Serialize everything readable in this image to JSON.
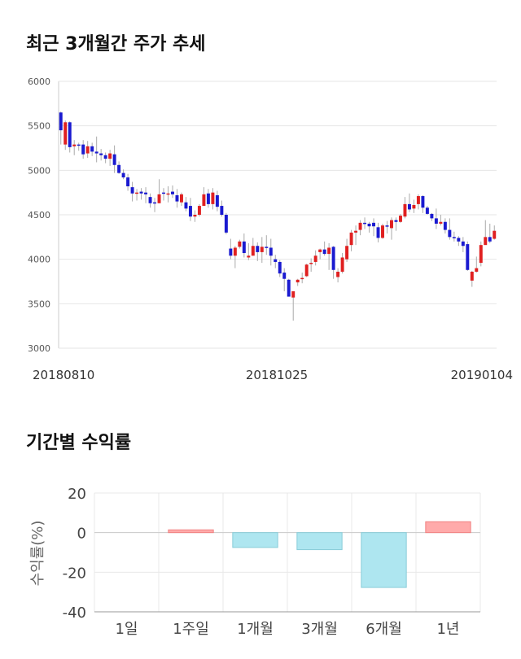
{
  "section1": {
    "title": "최근 3개월간 주가 추세"
  },
  "section2": {
    "title": "기간별 수익률"
  },
  "chart_data": [
    {
      "type": "candlestick",
      "y_ticks": [
        "6000",
        "5500",
        "5000",
        "4500",
        "4000",
        "3500",
        "3000"
      ],
      "ylim": [
        3000,
        6000
      ],
      "x_labels": [
        "20180810",
        "20181025",
        "20190104"
      ],
      "grid": true,
      "colors": {
        "up": "#e02020",
        "down": "#1a1ad0",
        "wick": "#aaaaaa"
      },
      "candles": [
        [
          5650,
          5450,
          5660,
          5290,
          5660
        ],
        [
          5290,
          5540,
          5560,
          5230,
          5540
        ],
        [
          5540,
          5260,
          5550,
          5200,
          5280
        ],
        [
          5270,
          5290,
          5340,
          5170,
          5290
        ],
        [
          5290,
          5280,
          5310,
          5220,
          5280
        ],
        [
          5290,
          5180,
          5340,
          5130,
          5180
        ],
        [
          5190,
          5270,
          5330,
          5140,
          5270
        ],
        [
          5270,
          5210,
          5310,
          5160,
          5210
        ],
        [
          5210,
          5190,
          5380,
          5090,
          5190
        ],
        [
          5190,
          5170,
          5240,
          5110,
          5170
        ],
        [
          5170,
          5130,
          5200,
          5080,
          5130
        ],
        [
          5130,
          5190,
          5230,
          5050,
          5190
        ],
        [
          5180,
          5060,
          5280,
          4970,
          5060
        ],
        [
          5060,
          4970,
          5100,
          4960,
          4970
        ],
        [
          4970,
          4920,
          5010,
          4900,
          4920
        ],
        [
          4920,
          4820,
          4960,
          4770,
          4820
        ],
        [
          4810,
          4740,
          4870,
          4650,
          4740
        ],
        [
          4750,
          4750,
          4790,
          4660,
          4750
        ],
        [
          4760,
          4740,
          4800,
          4670,
          4740
        ],
        [
          4750,
          4730,
          4810,
          4630,
          4730
        ],
        [
          4700,
          4630,
          4740,
          4580,
          4630
        ],
        [
          4640,
          4630,
          4690,
          4530,
          4630
        ],
        [
          4630,
          4730,
          4900,
          4630,
          4730
        ],
        [
          4750,
          4740,
          4800,
          4660,
          4740
        ],
        [
          4740,
          4740,
          4820,
          4640,
          4740
        ],
        [
          4760,
          4730,
          4830,
          4690,
          4730
        ],
        [
          4720,
          4650,
          4790,
          4580,
          4650
        ],
        [
          4640,
          4730,
          4750,
          4600,
          4700
        ],
        [
          4640,
          4570,
          4700,
          4540,
          4570
        ],
        [
          4600,
          4480,
          4690,
          4430,
          4480
        ],
        [
          4480,
          4500,
          4550,
          4420,
          4500
        ],
        [
          4500,
          4600,
          4620,
          4480,
          4600
        ],
        [
          4600,
          4730,
          4810,
          4600,
          4730
        ],
        [
          4740,
          4620,
          4790,
          4580,
          4620
        ],
        [
          4620,
          4750,
          4800,
          4560,
          4750
        ],
        [
          4720,
          4590,
          4770,
          4540,
          4590
        ],
        [
          4600,
          4500,
          4660,
          4480,
          4500
        ],
        [
          4500,
          4300,
          4520,
          4280,
          4300
        ],
        [
          4120,
          4040,
          4230,
          4000,
          4040
        ],
        [
          4040,
          4130,
          4150,
          3900,
          3900
        ],
        [
          4140,
          4200,
          4220,
          4120,
          4180
        ],
        [
          4200,
          4070,
          4290,
          4020,
          4020
        ],
        [
          4020,
          4040,
          4180,
          3990,
          4040
        ],
        [
          4040,
          4150,
          4240,
          4040,
          4150
        ],
        [
          4150,
          4080,
          4190,
          3980,
          4080
        ],
        [
          4080,
          4140,
          4250,
          3960,
          4140
        ],
        [
          4140,
          4130,
          4270,
          4050,
          4130
        ],
        [
          4130,
          4040,
          4230,
          3930,
          4040
        ],
        [
          4000,
          3970,
          4050,
          3900,
          3970
        ],
        [
          3970,
          3840,
          3990,
          3800,
          3840
        ],
        [
          3850,
          3780,
          3900,
          3640,
          3780
        ],
        [
          3770,
          3580,
          3780,
          3580,
          3580
        ],
        [
          3570,
          3640,
          3640,
          3310,
          3640
        ],
        [
          3740,
          3770,
          3780,
          3700,
          3770
        ],
        [
          3790,
          3790,
          3850,
          3730,
          3790
        ],
        [
          3810,
          3940,
          3950,
          3800,
          3940
        ],
        [
          3950,
          3960,
          4010,
          3860,
          3960
        ],
        [
          3970,
          4040,
          4100,
          3930,
          4040
        ],
        [
          4080,
          4110,
          4120,
          4000,
          4110
        ],
        [
          4110,
          4060,
          4200,
          4040,
          4060
        ],
        [
          4060,
          4130,
          4180,
          3880,
          4130
        ],
        [
          4140,
          3880,
          4150,
          3780,
          3880
        ],
        [
          3800,
          3860,
          3900,
          3740,
          3860
        ],
        [
          3860,
          4020,
          4070,
          3840,
          4020
        ],
        [
          4000,
          4150,
          4230,
          3970,
          4150
        ],
        [
          4160,
          4300,
          4330,
          4090,
          4300
        ],
        [
          4300,
          4320,
          4380,
          4160,
          4320
        ],
        [
          4330,
          4410,
          4440,
          4270,
          4410
        ],
        [
          4410,
          4400,
          4470,
          4340,
          4400
        ],
        [
          4400,
          4370,
          4420,
          4300,
          4370
        ],
        [
          4410,
          4370,
          4460,
          4260,
          4370
        ],
        [
          4360,
          4240,
          4410,
          4190,
          4240
        ],
        [
          4240,
          4380,
          4400,
          4230,
          4380
        ],
        [
          4380,
          4370,
          4430,
          4290,
          4370
        ],
        [
          4350,
          4440,
          4470,
          4220,
          4440
        ],
        [
          4440,
          4420,
          4470,
          4320,
          4420
        ],
        [
          4420,
          4490,
          4510,
          4410,
          4490
        ],
        [
          4480,
          4620,
          4700,
          4460,
          4620
        ],
        [
          4620,
          4560,
          4740,
          4530,
          4560
        ],
        [
          4570,
          4610,
          4670,
          4520,
          4610
        ],
        [
          4620,
          4710,
          4730,
          4560,
          4710
        ],
        [
          4710,
          4580,
          4720,
          4520,
          4580
        ],
        [
          4580,
          4510,
          4600,
          4500,
          4510
        ],
        [
          4510,
          4460,
          4520,
          4430,
          4460
        ],
        [
          4460,
          4400,
          4570,
          4340,
          4400
        ],
        [
          4400,
          4420,
          4500,
          4380,
          4420
        ],
        [
          4420,
          4330,
          4460,
          4290,
          4330
        ],
        [
          4330,
          4250,
          4460,
          4220,
          4250
        ],
        [
          4250,
          4240,
          4310,
          4200,
          4240
        ],
        [
          4240,
          4200,
          4260,
          4150,
          4200
        ],
        [
          4200,
          4150,
          4250,
          4080,
          4150
        ],
        [
          4170,
          3880,
          4200,
          3870,
          3880
        ],
        [
          3760,
          3860,
          3870,
          3690,
          3860
        ],
        [
          3860,
          3900,
          4030,
          3850,
          3900
        ],
        [
          3960,
          4160,
          4200,
          3920,
          4160
        ],
        [
          4160,
          4250,
          4440,
          4180,
          4240
        ],
        [
          4250,
          4200,
          4400,
          4180,
          4200
        ],
        [
          4230,
          4320,
          4380,
          4220,
          4320
        ]
      ]
    },
    {
      "type": "bar",
      "categories": [
        "1일",
        "1주일",
        "1개월",
        "3개월",
        "6개월",
        "1년"
      ],
      "values": [
        0,
        1.4,
        -7.5,
        -8.6,
        -27.7,
        5.5
      ],
      "y_ticks": [
        "20",
        "0",
        "-20",
        "-40"
      ],
      "ylim": [
        -40,
        20
      ],
      "ylabel": "수익률(%)",
      "grid": true,
      "colors": {
        "positive": "#ffaaaa",
        "negative": "#aee6f0"
      }
    }
  ]
}
